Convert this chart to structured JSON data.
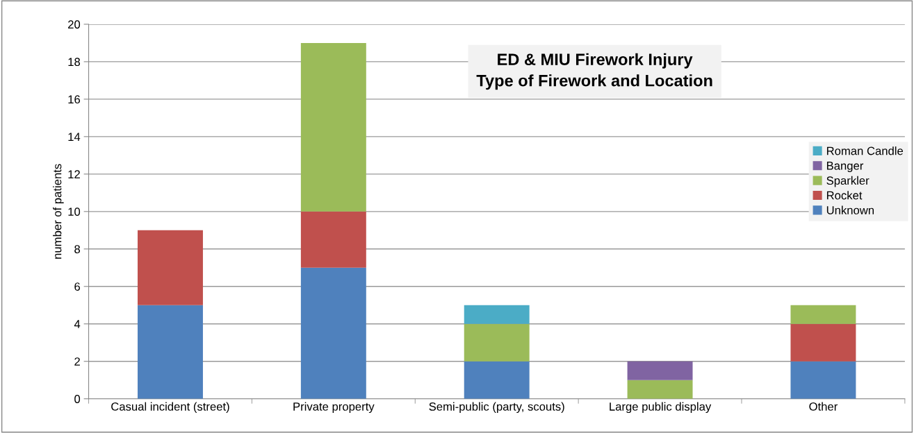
{
  "chart_data": {
    "type": "bar",
    "stacked": true,
    "title": "ED & MIU Firework Injury\nType of Firework and Location",
    "ylabel": "number of patients",
    "categories": [
      "Casual incident (street)",
      "Private property",
      "Semi-public (party, scouts)",
      "Large public display",
      "Other"
    ],
    "series": [
      {
        "name": "Unknown",
        "color": "#4f81bd",
        "values": [
          5,
          7,
          2,
          null,
          2
        ]
      },
      {
        "name": "Rocket",
        "color": "#c0504d",
        "values": [
          4,
          3,
          null,
          null,
          2
        ]
      },
      {
        "name": "Sparkler",
        "color": "#9bbb59",
        "values": [
          null,
          9,
          2,
          1,
          1
        ]
      },
      {
        "name": "Banger",
        "color": "#8064a2",
        "values": [
          null,
          null,
          null,
          1,
          null
        ]
      },
      {
        "name": "Roman Candle",
        "color": "#4bacc6",
        "values": [
          null,
          null,
          1,
          null,
          null
        ]
      }
    ],
    "ylim": [
      0,
      20
    ],
    "yticks": [
      0,
      2,
      4,
      6,
      8,
      10,
      12,
      14,
      16,
      18,
      20
    ],
    "grid": "y",
    "legend": "right"
  }
}
